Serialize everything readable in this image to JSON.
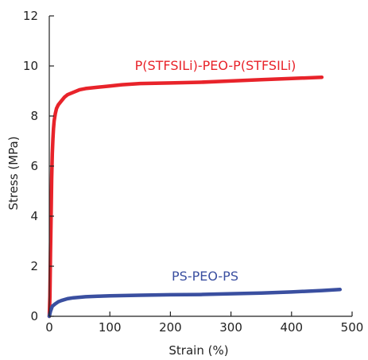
{
  "chart_data": {
    "type": "line",
    "xlabel": "Strain (%)",
    "ylabel": "Stress (MPa)",
    "xlim": [
      0,
      500
    ],
    "ylim": [
      0,
      12
    ],
    "x_ticks": [
      0,
      100,
      200,
      300,
      400,
      500
    ],
    "y_ticks": [
      0,
      2,
      4,
      6,
      8,
      10,
      12
    ],
    "grid": false,
    "series": [
      {
        "name": "P(STFSILi)-PEO-P(STFSILi)",
        "color": "#e8232a",
        "x": [
          0,
          1,
          2,
          3,
          4,
          5,
          6,
          7,
          8,
          10,
          12,
          15,
          20,
          25,
          30,
          40,
          50,
          60,
          80,
          100,
          120,
          150,
          200,
          250,
          300,
          350,
          400,
          450
        ],
        "y": [
          0,
          0.8,
          2.5,
          4.0,
          5.5,
          6.5,
          7.1,
          7.5,
          7.8,
          8.1,
          8.3,
          8.45,
          8.6,
          8.75,
          8.85,
          8.95,
          9.05,
          9.1,
          9.15,
          9.2,
          9.25,
          9.3,
          9.32,
          9.35,
          9.4,
          9.45,
          9.5,
          9.55
        ]
      },
      {
        "name": "PS-PEO-PS",
        "color": "#3a4fa0",
        "x": [
          0,
          2,
          5,
          10,
          15,
          20,
          30,
          40,
          60,
          80,
          100,
          150,
          200,
          250,
          300,
          350,
          400,
          450,
          480
        ],
        "y": [
          0,
          0.2,
          0.4,
          0.5,
          0.58,
          0.63,
          0.7,
          0.74,
          0.78,
          0.8,
          0.82,
          0.84,
          0.86,
          0.87,
          0.9,
          0.93,
          0.97,
          1.03,
          1.07
        ]
      }
    ]
  }
}
